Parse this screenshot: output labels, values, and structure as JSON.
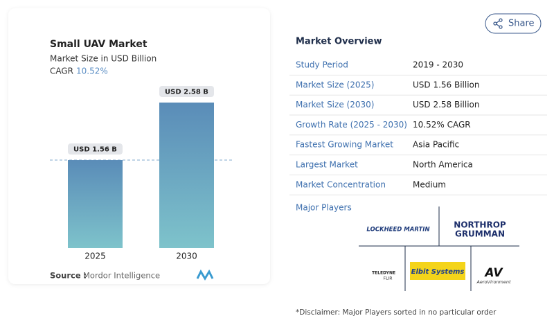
{
  "chart_data": {
    "type": "bar",
    "title": "Small UAV Market",
    "subtitle": "Market Size in USD Billion",
    "cagr_label": "CAGR",
    "cagr_value": "10.52%",
    "categories": [
      "2025",
      "2030"
    ],
    "values": [
      1.56,
      2.58
    ],
    "value_labels": [
      "USD 1.56 B",
      "USD 2.58 B"
    ],
    "source_label": "Source :",
    "source": "Mordor Intelligence"
  },
  "share": "Share",
  "overview": {
    "title": "Market Overview",
    "rows": [
      [
        "Study Period",
        "2019 - 2030"
      ],
      [
        "Market Size (2025)",
        "USD 1.56 Billion"
      ],
      [
        "Market Size (2030)",
        "USD 2.58 Billion"
      ],
      [
        "Growth Rate (2025 - 2030)",
        "10.52% CAGR"
      ],
      [
        "Fastest Growing Market",
        "Asia Pacific"
      ],
      [
        "Largest Market",
        "North America"
      ],
      [
        "Market Concentration",
        "Medium"
      ]
    ]
  },
  "players": {
    "title": "Major Players",
    "lockheed": "LOCKHEED MARTIN",
    "northrop_1": "NORTHROP",
    "northrop_2": "GRUMMAN",
    "teledyne_1": "TELEDYNE",
    "teledyne_2": "FLIR",
    "elbit": "Elbit Systems",
    "av": "AV",
    "aerovironment": "AeroVironment"
  },
  "disclaimer": "*Disclaimer: Major Players sorted in no particular order"
}
